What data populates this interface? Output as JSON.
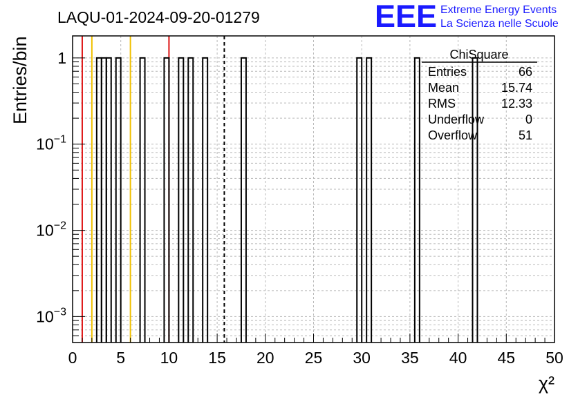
{
  "chart_data": {
    "type": "bar",
    "title": "LAQU-01-2024-09-20-01279",
    "xlabel": "χ²",
    "ylabel": "Entries/bin",
    "xlim": [
      0,
      50
    ],
    "ylim": [
      0.0005,
      1.8
    ],
    "yscale": "log",
    "grid": true,
    "bin_width": 0.5,
    "x_ticks": [
      0,
      5,
      10,
      15,
      20,
      25,
      30,
      35,
      40,
      45,
      50
    ],
    "x_tick_labels": [
      "0",
      "5",
      "10",
      "15",
      "20",
      "25",
      "30",
      "35",
      "40",
      "45",
      "50"
    ],
    "y_ticks": [
      {
        "value": 1,
        "base": "1",
        "exp": ""
      },
      {
        "value": 0.1,
        "base": "10",
        "exp": "−1"
      },
      {
        "value": 0.01,
        "base": "10",
        "exp": "−2"
      },
      {
        "value": 0.001,
        "base": "10",
        "exp": "−3"
      }
    ],
    "bins": [
      {
        "x": 2.5,
        "value": 1
      },
      {
        "x": 3.0,
        "value": 1
      },
      {
        "x": 3.5,
        "value": 1
      },
      {
        "x": 4.5,
        "value": 1
      },
      {
        "x": 7.0,
        "value": 1
      },
      {
        "x": 9.5,
        "value": 1
      },
      {
        "x": 11.0,
        "value": 1
      },
      {
        "x": 12.0,
        "value": 1
      },
      {
        "x": 13.5,
        "value": 1
      },
      {
        "x": 17.5,
        "value": 1
      },
      {
        "x": 29.5,
        "value": 1
      },
      {
        "x": 30.5,
        "value": 1
      },
      {
        "x": 35.5,
        "value": 1
      },
      {
        "x": 41.5,
        "value": 1
      }
    ],
    "reference_lines": [
      {
        "x": 1,
        "color": "#dd1111",
        "style": "solid"
      },
      {
        "x": 10,
        "color": "#dd1111",
        "style": "solid"
      },
      {
        "x": 2,
        "color": "#f0c000",
        "style": "solid"
      },
      {
        "x": 6,
        "color": "#f0c000",
        "style": "solid"
      },
      {
        "x": 15.74,
        "color": "#000000",
        "style": "dashed"
      }
    ],
    "stats": {
      "name": "ChiSquare",
      "rows": [
        {
          "label": "Entries",
          "value": "66"
        },
        {
          "label": "Mean",
          "value": "15.74"
        },
        {
          "label": "RMS",
          "value": "12.33"
        },
        {
          "label": "Underflow",
          "value": "0"
        },
        {
          "label": "Overflow",
          "value": "51"
        }
      ]
    },
    "logo": {
      "text": "EEE",
      "line1": "Extreme Energy Events",
      "line2": "La Scienza nelle Scuole",
      "color": "#1a1aff"
    }
  }
}
